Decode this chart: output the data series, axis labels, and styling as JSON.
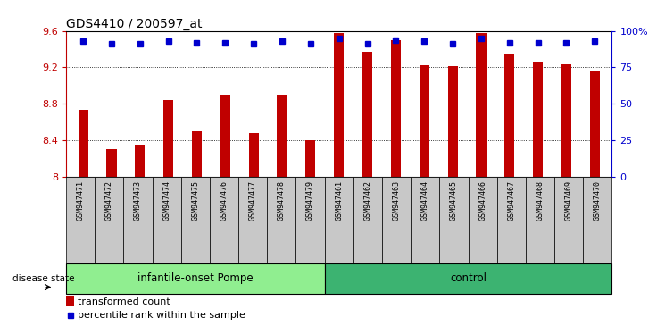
{
  "title": "GDS4410 / 200597_at",
  "samples": [
    "GSM947471",
    "GSM947472",
    "GSM947473",
    "GSM947474",
    "GSM947475",
    "GSM947476",
    "GSM947477",
    "GSM947478",
    "GSM947479",
    "GSM947461",
    "GSM947462",
    "GSM947463",
    "GSM947464",
    "GSM947465",
    "GSM947466",
    "GSM947467",
    "GSM947468",
    "GSM947469",
    "GSM947470"
  ],
  "bar_values": [
    8.73,
    8.3,
    8.35,
    8.84,
    8.5,
    8.9,
    8.48,
    8.9,
    8.4,
    9.58,
    9.37,
    9.5,
    9.22,
    9.21,
    9.58,
    9.35,
    9.26,
    9.23,
    9.16
  ],
  "percentile_values": [
    93,
    91,
    91,
    93,
    92,
    92,
    91,
    93,
    91,
    95,
    91,
    94,
    93,
    91,
    95,
    92,
    92,
    92,
    93
  ],
  "bar_color": "#C00000",
  "dot_color": "#0000CD",
  "ylim": [
    8.0,
    9.6
  ],
  "yticks": [
    8.0,
    8.4,
    8.8,
    9.2,
    9.6
  ],
  "ytick_labels": [
    "8",
    "8.4",
    "8.8",
    "9.2",
    "9.6"
  ],
  "y2lim": [
    0,
    100
  ],
  "y2ticks": [
    0,
    25,
    50,
    75,
    100
  ],
  "y2tick_labels": [
    "0",
    "25",
    "50",
    "75",
    "100%"
  ],
  "group1_label": "infantile-onset Pompe",
  "group2_label": "control",
  "disease_state_label": "disease state",
  "group1_count": 9,
  "group2_count": 10,
  "legend1": "transformed count",
  "legend2": "percentile rank within the sample",
  "group1_bg": "#90EE90",
  "group2_bg": "#3CB371",
  "xticklabel_bg": "#C8C8C8",
  "bar_width": 0.35
}
